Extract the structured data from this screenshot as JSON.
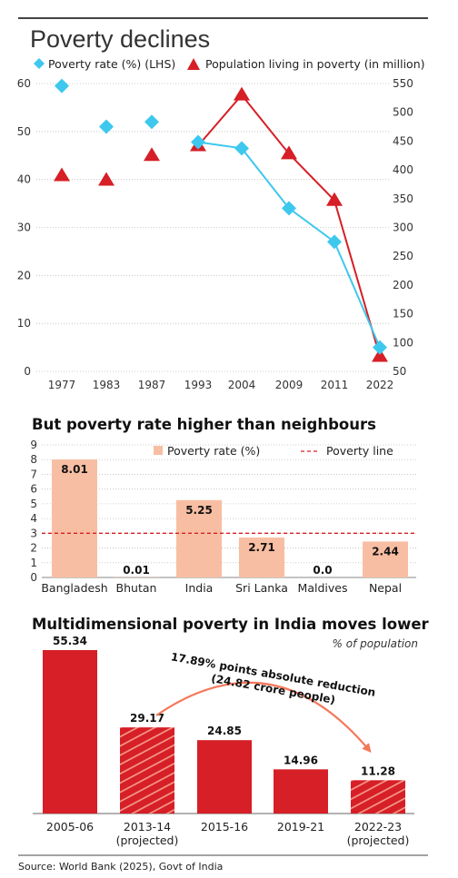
{
  "chart_data": [
    {
      "type": "scatter",
      "title": "Poverty declines",
      "x": [
        "1977",
        "1983",
        "1987",
        "1993",
        "2004",
        "2009",
        "2011",
        "2022"
      ],
      "series": [
        {
          "name": "Poverty rate (%) (LHS)",
          "axis": "left",
          "values": [
            59.5,
            51.0,
            52.0,
            47.8,
            46.5,
            34.0,
            27.0,
            5.0
          ],
          "color": "#3ec8ee",
          "marker": "diamond"
        },
        {
          "name": "Population living in poverty (in million)",
          "axis": "right",
          "values": [
            390,
            382,
            425,
            442,
            530,
            428,
            347,
            76
          ],
          "color": "#d61f26",
          "marker": "triangle"
        }
      ],
      "lines_connect_from": "1993",
      "left_axis": {
        "min": 0,
        "max": 60,
        "ticks": [
          "0",
          "10",
          "20",
          "30",
          "40",
          "50",
          "60"
        ]
      },
      "right_axis": {
        "min": 50,
        "max": 550,
        "ticks": [
          "50",
          "100",
          "150",
          "200",
          "250",
          "300",
          "350",
          "400",
          "450",
          "500",
          "550"
        ]
      },
      "grid": true,
      "legend": "top"
    },
    {
      "type": "bar",
      "title": "But poverty rate higher than neighbours",
      "categories": [
        "Bangladesh",
        "Bhutan",
        "India",
        "Sri Lanka",
        "Maldives",
        "Nepal"
      ],
      "values": [
        8.01,
        0.01,
        5.25,
        2.71,
        0.0,
        2.44
      ],
      "labels": [
        "8.01",
        "0.01",
        "5.25",
        "2.71",
        "0.0",
        "2.44"
      ],
      "series_name": "Poverty rate (%)",
      "reference_line": {
        "name": "Poverty line",
        "value": 3
      },
      "ylim": [
        0,
        9
      ],
      "ticks": [
        "0",
        "1",
        "2",
        "3",
        "4",
        "5",
        "6",
        "7",
        "8",
        "9"
      ],
      "bar_color": "#f8bea3",
      "line_color": "#d61f26",
      "grid": true,
      "legend": "top"
    },
    {
      "type": "bar",
      "title": "Multidimensional poverty in India moves lower",
      "unit_note": "% of population",
      "categories": [
        [
          "2005-06"
        ],
        [
          "2013-14",
          "(projected)"
        ],
        [
          "2015-16"
        ],
        [
          "2019-21"
        ],
        [
          "2022-23",
          "(projected)"
        ]
      ],
      "values": [
        55.34,
        29.17,
        24.85,
        14.96,
        11.28
      ],
      "labels": [
        "55.34",
        "29.17",
        "24.85",
        "14.96",
        "11.28"
      ],
      "projected": [
        false,
        true,
        false,
        false,
        true
      ],
      "annotation": [
        "17.89% points absolute reduction",
        "(24.82 crore people)"
      ],
      "bar_color": "#d61f26",
      "arrow_color": "#f4785a"
    }
  ],
  "source": "Source: World Bank (2025), Govt of India"
}
